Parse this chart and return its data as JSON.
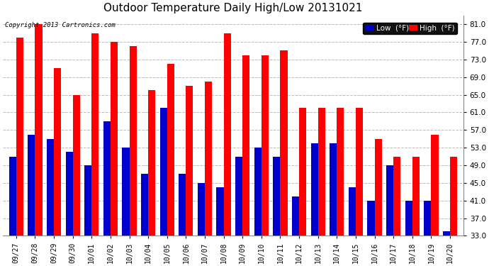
{
  "title": "Outdoor Temperature Daily High/Low 20131021",
  "copyright": "Copyright 2013 Cartronics.com",
  "categories": [
    "09/27",
    "09/28",
    "09/29",
    "09/30",
    "10/01",
    "10/02",
    "10/03",
    "10/04",
    "10/05",
    "10/06",
    "10/07",
    "10/08",
    "10/09",
    "10/10",
    "10/11",
    "10/12",
    "10/13",
    "10/14",
    "10/15",
    "10/16",
    "10/17",
    "10/18",
    "10/19",
    "10/20"
  ],
  "high_temps": [
    78,
    81,
    71,
    65,
    79,
    77,
    76,
    66,
    72,
    67,
    68,
    79,
    74,
    74,
    75,
    62,
    62,
    62,
    62,
    55,
    51,
    51,
    56,
    51
  ],
  "low_temps": [
    51,
    56,
    55,
    52,
    49,
    59,
    53,
    47,
    62,
    47,
    45,
    44,
    51,
    53,
    51,
    42,
    54,
    54,
    44,
    41,
    49,
    41,
    41,
    34
  ],
  "high_color": "#ff0000",
  "low_color": "#0000cc",
  "background_color": "#ffffff",
  "grid_color": "#bbbbbb",
  "ybase": 33.0,
  "ylim_min": 33.0,
  "ylim_max": 83.0,
  "yticks": [
    33.0,
    37.0,
    41.0,
    45.0,
    49.0,
    53.0,
    57.0,
    61.0,
    65.0,
    69.0,
    73.0,
    77.0,
    81.0
  ],
  "legend_low_bg": "#0000cc",
  "legend_high_bg": "#ff0000",
  "legend_low_text": "Low  (°F)",
  "legend_high_text": "High  (°F)",
  "bar_width": 0.38
}
